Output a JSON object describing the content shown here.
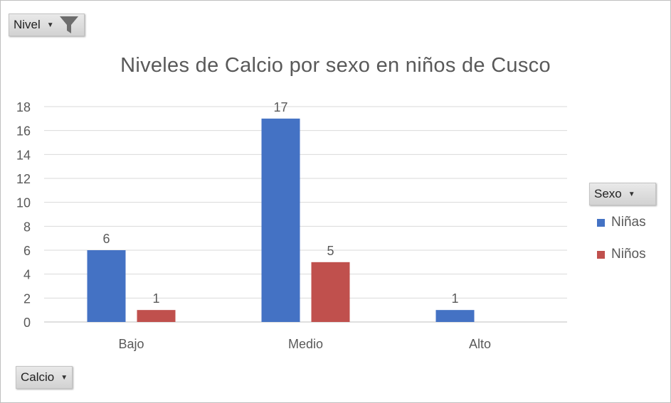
{
  "filters": {
    "nivel_label": "Nivel",
    "calcio_label": "Calcio",
    "sexo_label": "Sexo"
  },
  "colors": {
    "ninas": "#4472c4",
    "ninos": "#c0504d",
    "grid": "#d9d9d9",
    "text": "#595959"
  },
  "chart_data": {
    "type": "bar",
    "title": "Niveles de Calcio por sexo en niños de Cusco",
    "categories": [
      "Bajo",
      "Medio",
      "Alto"
    ],
    "series": [
      {
        "name": "Niñas",
        "values": [
          6,
          17,
          1
        ]
      },
      {
        "name": "Niños",
        "values": [
          1,
          5,
          null
        ]
      }
    ],
    "ylim": [
      0,
      18
    ],
    "yticks": [
      0,
      2,
      4,
      6,
      8,
      10,
      12,
      14,
      16,
      18
    ],
    "grid": true,
    "legend": "right",
    "legend_title": "Sexo",
    "data_labels": true
  }
}
